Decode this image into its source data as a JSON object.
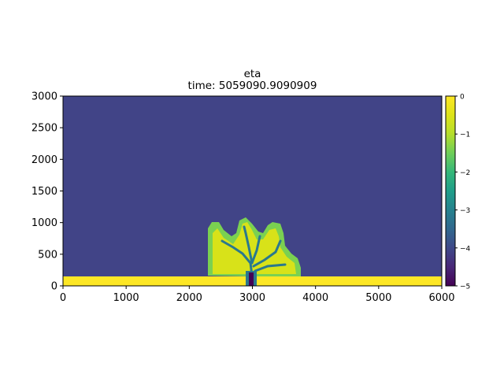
{
  "chart_data": {
    "type": "heatmap",
    "title": "eta",
    "subtitle": "time: 5059090.9090909",
    "xlabel": "",
    "ylabel": "",
    "xlim": [
      0,
      6000
    ],
    "ylim": [
      0,
      3000
    ],
    "x_ticks": [
      "0",
      "1000",
      "2000",
      "3000",
      "4000",
      "5000",
      "6000"
    ],
    "y_ticks": [
      "0",
      "500",
      "1000",
      "1500",
      "2000",
      "2500",
      "3000"
    ],
    "colormap": "viridis",
    "color_range": [
      -5,
      0
    ],
    "colorbar_ticks": [
      "0",
      "−1",
      "−2",
      "−3",
      "−4",
      "−5"
    ],
    "background_value": -4,
    "grid": false,
    "regions": [
      {
        "label": "shoreline strip",
        "x": [
          0,
          6000
        ],
        "y": [
          0,
          150
        ],
        "value": 0
      },
      {
        "label": "delta lobes",
        "x": [
          2300,
          3750
        ],
        "y": [
          150,
          1050
        ],
        "value": -0.4
      },
      {
        "label": "channel",
        "x": [
          2950,
          3050
        ],
        "y": [
          0,
          200
        ],
        "value": -5
      }
    ],
    "colors": {
      "background": "#414487",
      "strip": "#fde725",
      "lobe_core": "#d8e219",
      "lobe_edge": "#7ad151",
      "channel_edge": "#2a788e",
      "channel": "#440154"
    }
  }
}
